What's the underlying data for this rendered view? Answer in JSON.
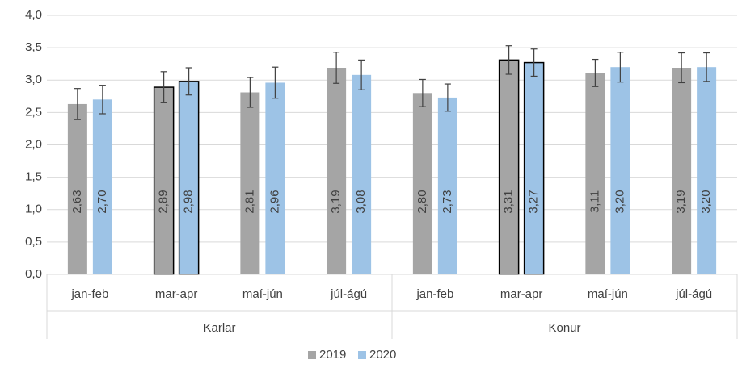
{
  "chart_data": {
    "type": "bar",
    "groups": [
      {
        "name": "Karlar",
        "categories": [
          "jan-feb",
          "mar-apr",
          "maí-jún",
          "júl-ágú"
        ]
      },
      {
        "name": "Konur",
        "categories": [
          "jan-feb",
          "mar-apr",
          "maí-jún",
          "júl-ágú"
        ]
      }
    ],
    "series": [
      {
        "name": "2019",
        "color": "#a5a5a5",
        "values": [
          2.63,
          2.89,
          2.81,
          3.19,
          2.8,
          3.31,
          3.11,
          3.19
        ],
        "value_labels": [
          "2,63",
          "2,89",
          "2,81",
          "3,19",
          "2,80",
          "3,31",
          "3,11",
          "3,19"
        ],
        "errors": [
          0.24,
          0.24,
          0.23,
          0.24,
          0.21,
          0.22,
          0.21,
          0.23
        ],
        "edgecolors": [
          null,
          "#000000",
          null,
          null,
          null,
          "#000000",
          null,
          null
        ]
      },
      {
        "name": "2020",
        "color": "#9dc3e6",
        "values": [
          2.7,
          2.98,
          2.96,
          3.08,
          2.73,
          3.27,
          3.2,
          3.2
        ],
        "value_labels": [
          "2,70",
          "2,98",
          "2,96",
          "3,08",
          "2,73",
          "3,27",
          "3,20",
          "3,20"
        ],
        "errors": [
          0.22,
          0.21,
          0.24,
          0.23,
          0.21,
          0.21,
          0.23,
          0.22
        ],
        "edgecolors": [
          null,
          "#000000",
          null,
          null,
          null,
          "#000000",
          null,
          null
        ]
      }
    ],
    "ylim": [
      0,
      4
    ],
    "yticks": [
      {
        "value": 0,
        "label": "0,0"
      },
      {
        "value": 0.5,
        "label": "0,5"
      },
      {
        "value": 1,
        "label": "1,0"
      },
      {
        "value": 1.5,
        "label": "1,5"
      },
      {
        "value": 2,
        "label": "2,0"
      },
      {
        "value": 2.5,
        "label": "2,5"
      },
      {
        "value": 3,
        "label": "3,0"
      },
      {
        "value": 3.5,
        "label": "3,5"
      },
      {
        "value": 4,
        "label": "4,0"
      }
    ],
    "grid": true,
    "legend": "bottom"
  }
}
